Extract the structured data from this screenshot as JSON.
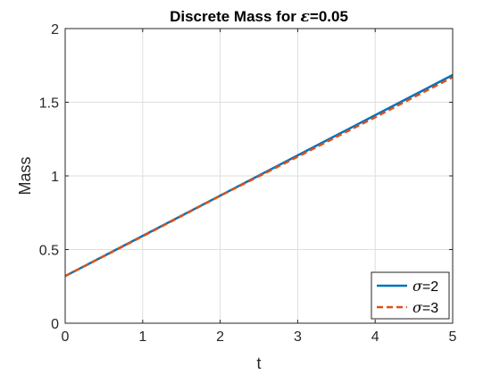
{
  "chart_data": {
    "type": "line",
    "title": {
      "prefix": "Discrete Mass for ",
      "symbol": "ε",
      "suffix": "=0.05"
    },
    "xlabel": "t",
    "ylabel": "Mass",
    "xlim": [
      0,
      5
    ],
    "ylim": [
      0,
      2
    ],
    "xticks": [
      0,
      1,
      2,
      3,
      4,
      5
    ],
    "yticks": [
      0,
      0.5,
      1,
      1.5,
      2
    ],
    "xtick_labels": [
      "0",
      "1",
      "2",
      "3",
      "4",
      "5"
    ],
    "ytick_labels": [
      "0",
      "0.5",
      "1",
      "1.5",
      "2"
    ],
    "grid": true,
    "legend_position": "bottom-right",
    "series": [
      {
        "symbol": "σ",
        "suffix": "=2",
        "color": "#0072BD",
        "style": "solid",
        "x": [
          0,
          5
        ],
        "y": [
          0.32,
          1.685
        ]
      },
      {
        "symbol": "σ",
        "suffix": "=3",
        "color": "#D95319",
        "style": "dashed",
        "x": [
          0,
          0.5,
          1,
          1.5,
          2,
          2.5,
          3,
          3.5,
          4,
          4.5,
          5
        ],
        "y": [
          0.32,
          0.455,
          0.59,
          0.727,
          0.865,
          0.998,
          1.13,
          1.265,
          1.398,
          1.535,
          1.67
        ]
      }
    ]
  }
}
